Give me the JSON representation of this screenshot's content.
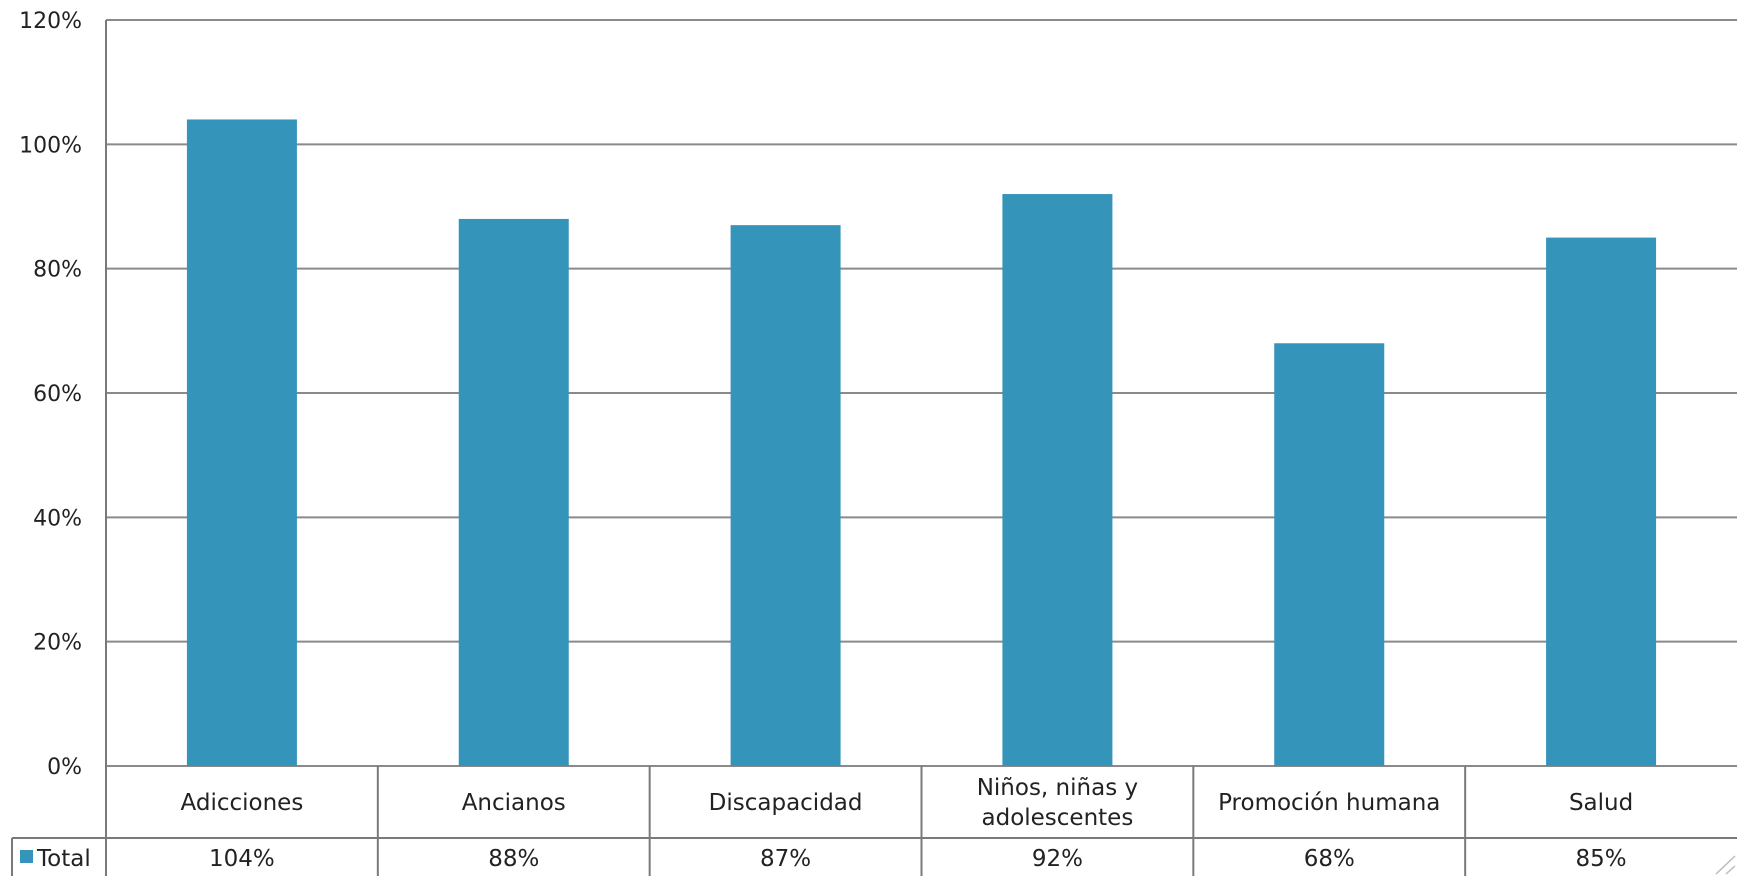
{
  "chart_data": {
    "type": "bar",
    "categories": [
      "Adicciones",
      "Ancianos",
      "Discapacidad",
      "Niños, niñas y adolescentes",
      "Promoción humana",
      "Salud"
    ],
    "category_label_lines": [
      [
        "Adicciones"
      ],
      [
        "Ancianos"
      ],
      [
        "Discapacidad"
      ],
      [
        "Niños, niñas y",
        "adolescentes"
      ],
      [
        "Promoción humana"
      ],
      [
        "Salud"
      ]
    ],
    "series": [
      {
        "name": "Total",
        "values": [
          1.04,
          0.88,
          0.87,
          0.92,
          0.68,
          0.85
        ],
        "color": "#3494ba"
      }
    ],
    "data_table_labels": [
      "104%",
      "88%",
      "87%",
      "92%",
      "68%",
      "85%"
    ],
    "ylim": [
      0,
      1.2
    ],
    "yticks": [
      0,
      0.2,
      0.4,
      0.6,
      0.8,
      1.0,
      1.2
    ],
    "ytick_labels": [
      "0%",
      "20%",
      "40%",
      "60%",
      "80%",
      "100%",
      "120%"
    ],
    "grid": true,
    "legend": "data-table-left",
    "title": "",
    "xlabel": "",
    "ylabel": ""
  }
}
